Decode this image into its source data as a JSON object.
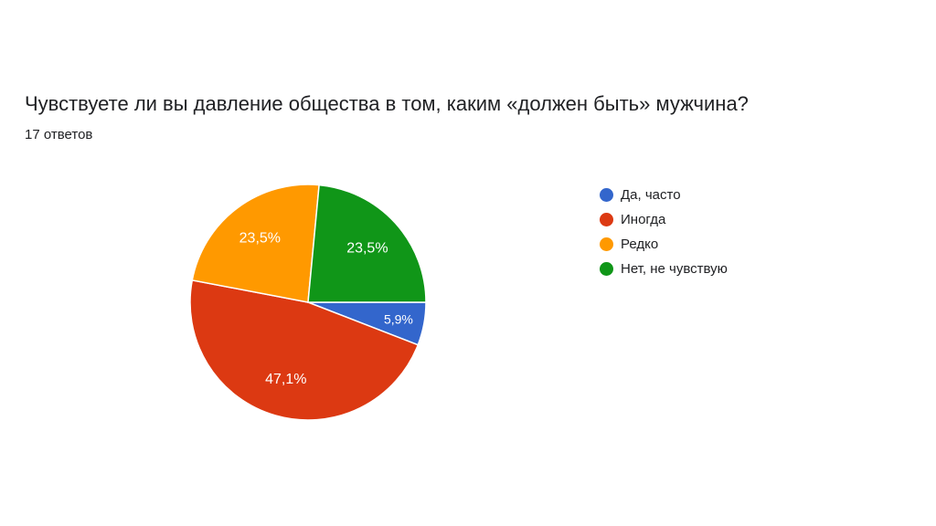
{
  "chart_data": {
    "type": "pie",
    "title": "Чувствуете ли вы давление общества в том, каким «должен быть» мужчина?",
    "subtitle": "17 ответов",
    "slices": [
      {
        "label": "Да, часто",
        "value": 5.9,
        "display": "5,9%",
        "color": "#3366cc"
      },
      {
        "label": "Иногда",
        "value": 47.1,
        "display": "47,1%",
        "color": "#dc3912"
      },
      {
        "label": "Редко",
        "value": 23.5,
        "display": "23,5%",
        "color": "#ff9900"
      },
      {
        "label": "Нет, не чувствую",
        "value": 23.5,
        "display": "23,5%",
        "color": "#109618"
      }
    ],
    "start": "3 o'clock",
    "direction": "clockwise",
    "legend_position": "right"
  }
}
